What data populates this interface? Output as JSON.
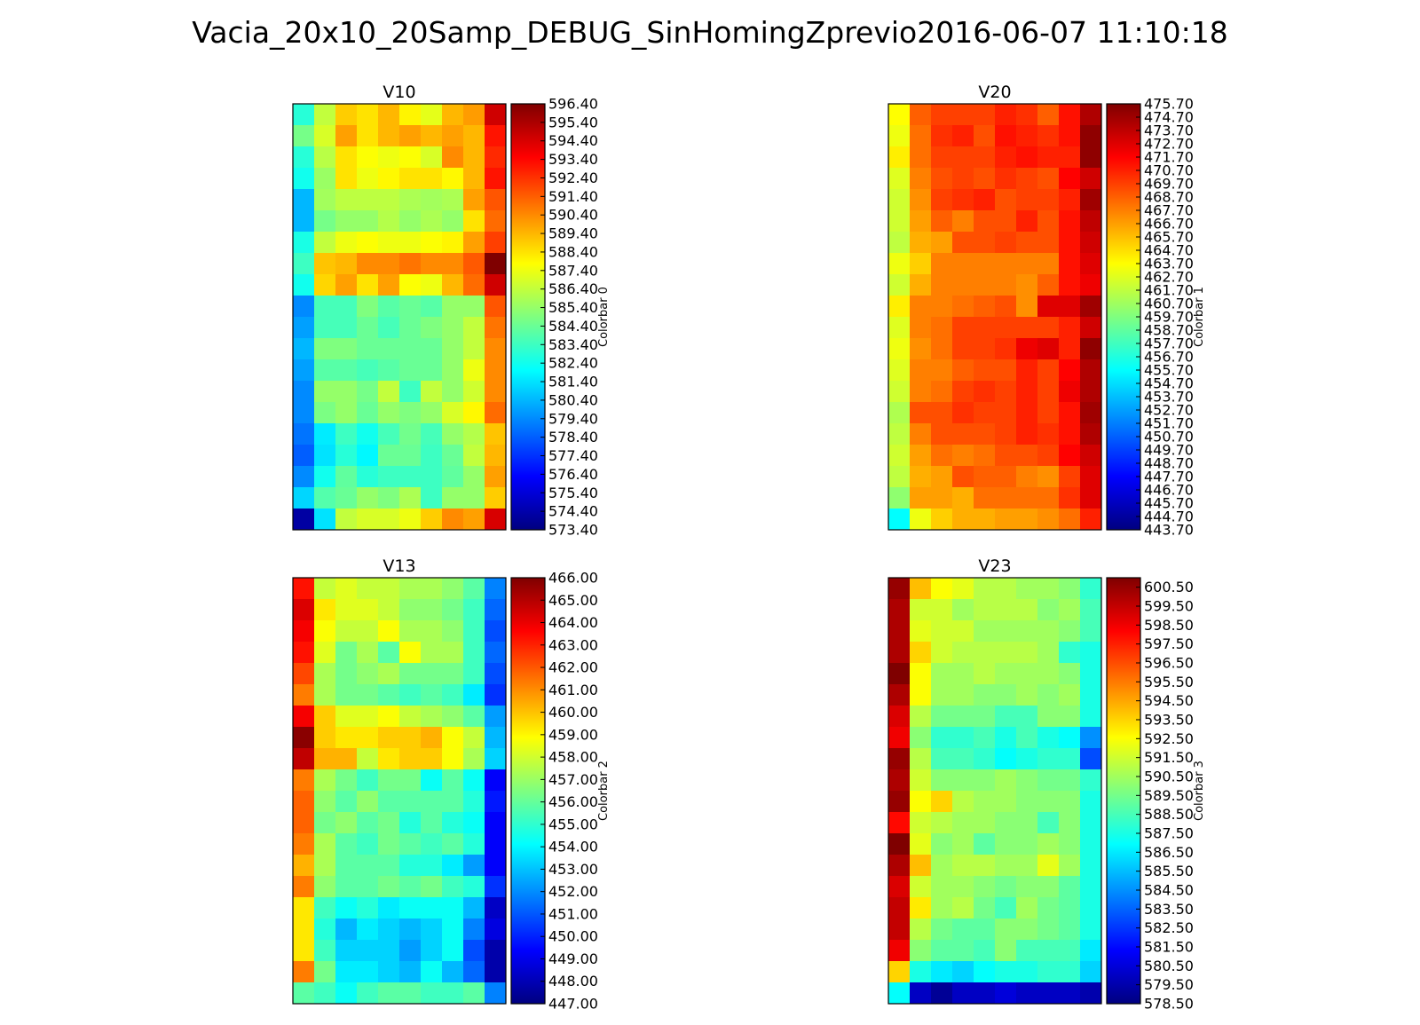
{
  "figure_title": "Vacia_20x10_20Samp_DEBUG_SinHomingZprevio2016-06-07 11:10:18",
  "colormap": {
    "name": "jet",
    "stops": [
      "#00007f",
      "#0000ff",
      "#007fff",
      "#00ffff",
      "#7fff7f",
      "#ffff00",
      "#ff7f00",
      "#ff0000",
      "#7f0000"
    ]
  },
  "chart_data": [
    {
      "type": "heatmap",
      "title": "V10",
      "colorbar_label": "Colorbar 0",
      "rows": 20,
      "cols": 10,
      "vmin": 573.4,
      "vmax": 596.4,
      "tick_step": 1.0,
      "tick_labels": [
        "573.40",
        "574.40",
        "575.40",
        "576.40",
        "577.40",
        "578.40",
        "579.40",
        "580.40",
        "581.40",
        "582.40",
        "583.40",
        "584.40",
        "585.40",
        "586.40",
        "587.40",
        "588.40",
        "589.40",
        "590.40",
        "591.40",
        "592.40",
        "593.40",
        "594.40",
        "595.40",
        "596.40"
      ],
      "values": [
        [
          582.9,
          586.4,
          588.9,
          588.4,
          589.4,
          588.0,
          587.2,
          589.4,
          590.0,
          594.6
        ],
        [
          584.7,
          586.9,
          589.9,
          588.4,
          589.4,
          589.9,
          589.4,
          589.9,
          589.4,
          593.1
        ],
        [
          582.9,
          586.2,
          588.4,
          587.7,
          587.4,
          587.7,
          586.9,
          590.4,
          589.4,
          592.6
        ],
        [
          582.4,
          585.5,
          588.4,
          587.4,
          587.9,
          588.4,
          588.4,
          587.9,
          589.4,
          593.1
        ],
        [
          580.4,
          585.7,
          586.3,
          586.3,
          586.3,
          585.9,
          585.7,
          585.9,
          589.9,
          591.6
        ],
        [
          580.4,
          584.7,
          585.4,
          585.4,
          586.1,
          585.4,
          585.9,
          585.4,
          588.4,
          591.1
        ],
        [
          582.6,
          586.4,
          587.4,
          587.7,
          587.4,
          587.4,
          587.7,
          588.0,
          589.9,
          592.1
        ],
        [
          583.4,
          589.1,
          589.4,
          590.4,
          590.4,
          590.9,
          590.4,
          590.4,
          591.5,
          596.4
        ],
        [
          582.4,
          588.7,
          589.9,
          588.4,
          589.9,
          587.7,
          587.4,
          589.4,
          591.1,
          594.6
        ],
        [
          579.4,
          583.6,
          583.6,
          584.9,
          584.0,
          584.4,
          584.0,
          585.4,
          585.4,
          591.6
        ],
        [
          579.9,
          583.6,
          583.6,
          584.4,
          583.6,
          584.4,
          584.9,
          585.4,
          586.4,
          590.9
        ],
        [
          580.4,
          584.9,
          584.9,
          584.4,
          584.4,
          584.4,
          584.4,
          585.4,
          586.4,
          590.4
        ],
        [
          579.9,
          584.0,
          584.0,
          583.6,
          584.0,
          584.4,
          584.4,
          585.4,
          587.4,
          590.4
        ],
        [
          579.4,
          585.4,
          585.4,
          584.7,
          586.4,
          583.4,
          586.4,
          585.4,
          586.7,
          590.4
        ],
        [
          579.4,
          584.8,
          585.4,
          584.4,
          585.4,
          584.9,
          585.4,
          586.9,
          587.9,
          591.1
        ],
        [
          578.9,
          581.6,
          583.4,
          582.4,
          583.6,
          584.6,
          583.6,
          585.4,
          586.1,
          589.1
        ],
        [
          578.4,
          581.4,
          582.9,
          581.9,
          584.4,
          584.4,
          583.4,
          584.4,
          586.4,
          589.4
        ],
        [
          579.4,
          582.4,
          584.2,
          582.9,
          583.4,
          583.4,
          583.4,
          584.2,
          585.4,
          589.9
        ],
        [
          581.1,
          583.9,
          584.4,
          585.4,
          584.9,
          585.9,
          583.4,
          585.4,
          585.4,
          588.9
        ],
        [
          574.2,
          581.4,
          586.4,
          586.9,
          586.9,
          587.4,
          588.9,
          590.4,
          589.9,
          594.4
        ]
      ]
    },
    {
      "type": "heatmap",
      "title": "V20",
      "colorbar_label": "Colorbar 1",
      "rows": 20,
      "cols": 10,
      "vmin": 443.7,
      "vmax": 475.7,
      "tick_step": 1.0,
      "tick_labels": [
        "443.70",
        "444.70",
        "445.70",
        "446.70",
        "447.70",
        "448.70",
        "449.70",
        "450.70",
        "451.70",
        "452.70",
        "453.70",
        "454.70",
        "455.70",
        "456.70",
        "457.70",
        "458.70",
        "459.70",
        "460.70",
        "461.70",
        "462.70",
        "463.70",
        "464.70",
        "465.70",
        "466.70",
        "467.70",
        "468.70",
        "469.70",
        "470.70",
        "471.70",
        "472.70",
        "473.70",
        "474.70",
        "475.70"
      ],
      "values": [
        [
          463.7,
          468.7,
          469.7,
          469.7,
          469.7,
          470.7,
          470.2,
          468.7,
          471.2,
          474.2
        ],
        [
          463.2,
          468.2,
          470.2,
          470.7,
          469.2,
          471.2,
          470.7,
          470.2,
          471.2,
          475.2
        ],
        [
          464.2,
          468.2,
          469.7,
          469.7,
          469.7,
          470.7,
          471.2,
          470.7,
          470.7,
          475.2
        ],
        [
          462.7,
          467.7,
          469.2,
          469.7,
          469.2,
          470.2,
          469.7,
          469.2,
          471.7,
          473.2
        ],
        [
          462.2,
          467.2,
          469.7,
          470.2,
          470.7,
          469.2,
          469.7,
          469.7,
          470.7,
          474.7
        ],
        [
          462.2,
          466.7,
          468.7,
          467.7,
          469.2,
          469.2,
          470.7,
          469.2,
          471.2,
          473.7
        ],
        [
          461.7,
          466.2,
          466.7,
          469.2,
          469.2,
          469.7,
          469.2,
          469.2,
          471.2,
          473.2
        ],
        [
          463.2,
          465.2,
          467.7,
          467.7,
          467.7,
          467.7,
          467.7,
          467.7,
          471.2,
          472.7
        ],
        [
          462.2,
          466.2,
          467.7,
          467.7,
          467.7,
          467.7,
          467.2,
          468.7,
          471.2,
          472.2
        ],
        [
          464.2,
          467.7,
          467.7,
          468.2,
          468.7,
          469.2,
          467.2,
          472.7,
          472.7,
          474.7
        ],
        [
          462.7,
          467.7,
          468.2,
          469.7,
          469.7,
          469.7,
          469.7,
          469.7,
          470.7,
          473.2
        ],
        [
          463.2,
          467.2,
          468.2,
          469.7,
          469.7,
          470.2,
          472.2,
          472.7,
          470.7,
          475.2
        ],
        [
          462.7,
          467.7,
          467.7,
          468.7,
          469.2,
          469.2,
          470.7,
          469.7,
          471.7,
          474.2
        ],
        [
          462.2,
          467.7,
          468.2,
          469.7,
          470.2,
          469.7,
          470.7,
          469.7,
          472.2,
          474.2
        ],
        [
          461.2,
          469.2,
          469.2,
          470.2,
          469.7,
          469.7,
          470.7,
          469.7,
          471.2,
          474.7
        ],
        [
          461.7,
          467.7,
          469.2,
          469.2,
          469.2,
          469.7,
          470.7,
          470.2,
          471.2,
          474.2
        ],
        [
          462.2,
          466.7,
          468.2,
          467.7,
          468.2,
          469.2,
          469.2,
          469.7,
          471.7,
          473.2
        ],
        [
          461.7,
          466.2,
          466.7,
          469.2,
          468.7,
          468.7,
          467.7,
          467.2,
          469.7,
          472.7
        ],
        [
          460.2,
          466.7,
          466.7,
          466.2,
          468.2,
          468.2,
          468.2,
          468.2,
          470.2,
          472.7
        ],
        [
          455.7,
          463.2,
          465.2,
          466.2,
          466.2,
          466.7,
          466.7,
          467.2,
          468.2,
          470.7
        ]
      ]
    },
    {
      "type": "heatmap",
      "title": "V13",
      "colorbar_label": "Colorbar 2",
      "rows": 20,
      "cols": 10,
      "vmin": 447.0,
      "vmax": 466.0,
      "tick_step": 1.0,
      "tick_labels": [
        "447.00",
        "448.00",
        "449.00",
        "450.00",
        "451.00",
        "452.00",
        "453.00",
        "454.00",
        "455.00",
        "456.00",
        "457.00",
        "458.00",
        "459.00",
        "460.00",
        "461.00",
        "462.00",
        "463.00",
        "464.00",
        "465.00",
        "466.00"
      ],
      "values": [
        [
          463.3,
          457.8,
          458.3,
          457.8,
          457.8,
          457.3,
          457.3,
          456.8,
          455.8,
          451.8
        ],
        [
          464.3,
          459.3,
          458.3,
          458.3,
          457.8,
          456.8,
          456.8,
          456.3,
          455.3,
          451.3
        ],
        [
          463.8,
          458.8,
          457.8,
          457.8,
          458.8,
          457.3,
          457.3,
          456.8,
          455.3,
          450.8
        ],
        [
          463.3,
          458.3,
          456.3,
          457.3,
          455.8,
          458.8,
          457.3,
          457.3,
          455.3,
          451.3
        ],
        [
          462.3,
          457.3,
          456.3,
          456.8,
          457.3,
          456.3,
          456.3,
          456.3,
          455.3,
          450.8
        ],
        [
          461.3,
          457.3,
          456.3,
          456.3,
          455.8,
          455.3,
          455.8,
          455.3,
          453.8,
          450.3
        ],
        [
          463.8,
          459.8,
          458.3,
          458.3,
          458.8,
          457.8,
          457.3,
          456.8,
          455.8,
          452.3
        ],
        [
          465.8,
          459.8,
          459.3,
          459.3,
          459.8,
          459.8,
          460.3,
          458.8,
          457.8,
          452.8
        ],
        [
          464.8,
          460.3,
          460.3,
          457.8,
          459.3,
          459.8,
          459.8,
          458.8,
          457.3,
          453.3
        ],
        [
          461.3,
          457.3,
          456.3,
          455.3,
          456.3,
          456.3,
          454.3,
          455.8,
          454.3,
          449.3
        ],
        [
          461.8,
          456.8,
          455.8,
          456.8,
          455.8,
          455.8,
          455.8,
          455.8,
          454.8,
          449.8
        ],
        [
          461.8,
          456.3,
          456.8,
          455.8,
          456.3,
          454.8,
          455.8,
          454.8,
          454.3,
          449.3
        ],
        [
          461.3,
          457.3,
          455.8,
          455.3,
          456.3,
          455.8,
          455.3,
          455.8,
          454.8,
          449.3
        ],
        [
          460.3,
          457.3,
          455.8,
          455.8,
          455.8,
          454.8,
          454.8,
          453.8,
          452.3,
          449.3
        ],
        [
          461.3,
          456.8,
          455.8,
          455.8,
          456.3,
          455.8,
          456.3,
          455.3,
          454.8,
          450.3
        ],
        [
          459.3,
          455.3,
          454.3,
          454.8,
          453.8,
          454.3,
          454.3,
          454.3,
          452.8,
          448.3
        ],
        [
          459.3,
          454.8,
          452.8,
          453.8,
          453.3,
          452.8,
          453.3,
          454.3,
          451.8,
          448.8
        ],
        [
          459.3,
          455.3,
          453.3,
          453.3,
          453.3,
          452.3,
          453.3,
          454.3,
          450.8,
          447.8
        ],
        [
          461.3,
          456.3,
          453.8,
          453.8,
          453.3,
          452.8,
          454.3,
          452.8,
          451.3,
          447.8
        ],
        [
          455.8,
          455.3,
          454.3,
          455.3,
          455.8,
          455.8,
          455.3,
          455.3,
          455.8,
          451.8
        ]
      ]
    },
    {
      "type": "heatmap",
      "title": "V23",
      "colorbar_label": "Colorbar 3",
      "rows": 20,
      "cols": 10,
      "vmin": 578.5,
      "vmax": 601.0,
      "tick_step": 1.0,
      "tick_labels": [
        "578.50",
        "579.50",
        "580.50",
        "581.50",
        "582.50",
        "583.50",
        "584.50",
        "585.50",
        "586.50",
        "587.50",
        "588.50",
        "589.50",
        "590.50",
        "591.50",
        "592.50",
        "593.50",
        "594.50",
        "595.50",
        "596.50",
        "597.50",
        "598.50",
        "599.50",
        "600.50"
      ],
      "values": [
        [
          600.5,
          594.0,
          592.5,
          592.0,
          591.0,
          591.0,
          590.5,
          590.5,
          590.0,
          588.0
        ],
        [
          600.0,
          591.5,
          591.5,
          590.5,
          591.0,
          591.0,
          591.0,
          590.0,
          590.5,
          588.5
        ],
        [
          600.0,
          592.0,
          591.5,
          591.5,
          590.5,
          590.5,
          590.5,
          590.5,
          590.0,
          588.5
        ],
        [
          600.0,
          593.5,
          591.5,
          591.0,
          591.0,
          591.0,
          591.0,
          590.5,
          588.0,
          587.5
        ],
        [
          601.0,
          592.5,
          590.5,
          590.5,
          591.0,
          590.5,
          590.5,
          590.5,
          590.0,
          587.5
        ],
        [
          600.0,
          592.5,
          590.5,
          590.5,
          590.0,
          590.0,
          590.5,
          590.0,
          590.5,
          587.5
        ],
        [
          599.0,
          591.0,
          589.5,
          589.5,
          589.5,
          588.5,
          588.5,
          590.0,
          590.0,
          587.5
        ],
        [
          598.5,
          590.0,
          588.0,
          588.0,
          588.5,
          587.5,
          588.5,
          587.5,
          587.0,
          584.5
        ],
        [
          600.5,
          591.0,
          588.5,
          588.5,
          588.0,
          587.0,
          587.5,
          588.0,
          588.0,
          583.0
        ],
        [
          600.0,
          591.5,
          590.0,
          590.0,
          590.0,
          590.5,
          590.0,
          589.5,
          589.5,
          588.0
        ],
        [
          600.5,
          592.5,
          593.5,
          591.0,
          590.5,
          590.5,
          590.0,
          590.0,
          590.0,
          587.5
        ],
        [
          598.0,
          591.5,
          591.0,
          590.5,
          590.5,
          590.0,
          590.0,
          588.5,
          590.0,
          587.5
        ],
        [
          601.0,
          592.0,
          590.0,
          590.5,
          589.0,
          590.0,
          590.0,
          590.5,
          590.0,
          587.5
        ],
        [
          600.0,
          594.0,
          590.5,
          591.0,
          591.0,
          590.5,
          590.5,
          592.0,
          590.5,
          587.5
        ],
        [
          599.0,
          591.5,
          590.5,
          590.5,
          590.0,
          589.5,
          590.0,
          590.0,
          589.0,
          587.5
        ],
        [
          599.5,
          593.0,
          590.5,
          591.0,
          589.5,
          588.5,
          590.5,
          589.5,
          589.0,
          587.5
        ],
        [
          599.5,
          591.0,
          589.5,
          589.0,
          589.0,
          590.0,
          590.0,
          589.5,
          589.0,
          587.5
        ],
        [
          598.5,
          590.0,
          589.0,
          589.0,
          588.5,
          590.0,
          588.5,
          588.5,
          588.5,
          586.5
        ],
        [
          593.5,
          587.5,
          586.5,
          586.0,
          587.0,
          587.5,
          587.5,
          588.0,
          588.0,
          586.0
        ],
        [
          587.0,
          580.0,
          579.0,
          580.0,
          580.0,
          580.5,
          580.0,
          580.0,
          580.0,
          579.5
        ]
      ]
    }
  ]
}
